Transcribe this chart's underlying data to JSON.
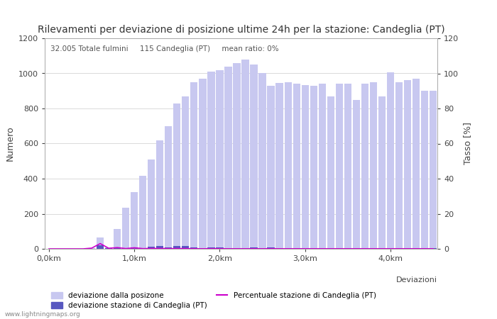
{
  "title": "Rilevamenti per deviazione di posizione ultime 24h per la stazione: Candeglia (PT)",
  "subtitle": "32.005 Totale fulmini     115 Candeglia (PT)     mean ratio: 0%",
  "xlabel": "Deviazioni",
  "ylabel_left": "Numero",
  "ylabel_right": "Tasso [%]",
  "ylim_left": [
    0,
    1200
  ],
  "ylim_right": [
    0,
    120
  ],
  "yticks_left": [
    0,
    200,
    400,
    600,
    800,
    1000,
    1200
  ],
  "yticks_right": [
    0,
    20,
    40,
    60,
    80,
    100,
    120
  ],
  "xtick_labels": [
    "0,0km",
    "1,0km",
    "2,0km",
    "3,0km",
    "4,0km"
  ],
  "xtick_positions": [
    0,
    10,
    20,
    30,
    40
  ],
  "bar_width": 0.85,
  "color_light": "#c8c8f0",
  "color_dark": "#5858c0",
  "color_line": "#cc00cc",
  "watermark": "www.lightningmaps.org",
  "legend_items": [
    {
      "label": "deviazione dalla posizone",
      "color": "#c8c8f0",
      "type": "patch"
    },
    {
      "label": "deviazione stazione di Candeglia (PT)",
      "color": "#5858c0",
      "type": "patch"
    },
    {
      "label": "Percentuale stazione di Candeglia (PT)",
      "color": "#cc00cc",
      "type": "line"
    }
  ],
  "x_positions": [
    0,
    1,
    2,
    3,
    4,
    5,
    6,
    7,
    8,
    9,
    10,
    11,
    12,
    13,
    14,
    15,
    16,
    17,
    18,
    19,
    20,
    21,
    22,
    23,
    24,
    25,
    26,
    27,
    28,
    29,
    30,
    31,
    32,
    33,
    34,
    35,
    36,
    37,
    38,
    39,
    40,
    41,
    42,
    43,
    44,
    45
  ],
  "bars_total": [
    0,
    0,
    0,
    0,
    0,
    5,
    65,
    10,
    115,
    235,
    325,
    415,
    510,
    620,
    700,
    830,
    870,
    950,
    970,
    1010,
    1020,
    1040,
    1060,
    1080,
    1050,
    1000,
    930,
    945,
    950,
    940,
    935,
    930,
    940,
    870,
    940,
    940,
    850,
    940,
    950,
    870,
    1005,
    950,
    960,
    970,
    900,
    900
  ],
  "bars_station": [
    0,
    0,
    0,
    0,
    0,
    2,
    20,
    3,
    8,
    4,
    8,
    6,
    12,
    15,
    10,
    15,
    15,
    8,
    6,
    10,
    8,
    6,
    6,
    6,
    8,
    6,
    8,
    6,
    6,
    6,
    6,
    6,
    6,
    6,
    6,
    6,
    6,
    6,
    6,
    6,
    6,
    6,
    6,
    6,
    6,
    6
  ],
  "line_pct_right": [
    0,
    0,
    0,
    0,
    0,
    0.4,
    3.0,
    0.3,
    0.7,
    0.15,
    0.6,
    0.13,
    0.22,
    0.22,
    0.13,
    0.17,
    0.17,
    0.08,
    0.06,
    0.09,
    0.07,
    0.06,
    0.05,
    0.05,
    0.07,
    0.06,
    0.08,
    0.06,
    0.06,
    0.06,
    0.06,
    0.06,
    0.06,
    0.06,
    0.06,
    0.06,
    0.06,
    0.06,
    0.06,
    0.06,
    0.06,
    0.06,
    0.06,
    0.06,
    0.06,
    0.06
  ]
}
